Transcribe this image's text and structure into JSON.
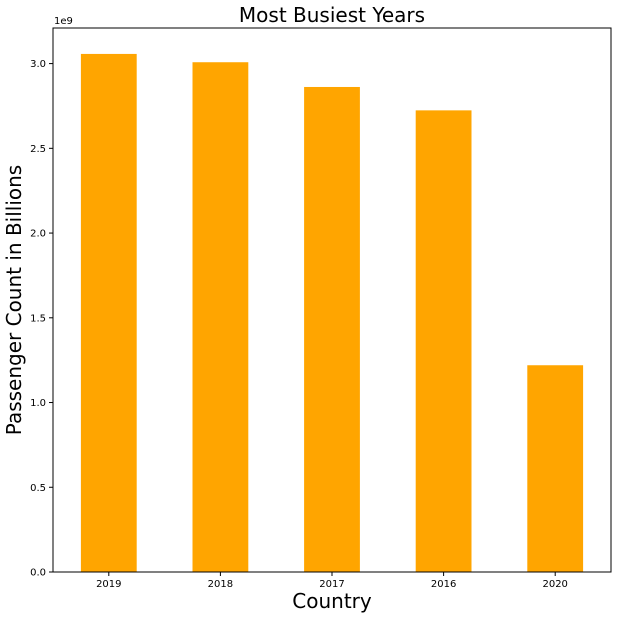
{
  "chart_data": {
    "type": "bar",
    "title": "Most Busiest Years",
    "xlabel": "Country",
    "ylabel": "Passenger Count in Billions",
    "y_offset_label": "1e9",
    "categories": [
      "2019",
      "2018",
      "2017",
      "2016",
      "2020"
    ],
    "values": [
      3057000000,
      3008000000,
      2862000000,
      2724000000,
      1220000000
    ],
    "ylim": [
      0,
      3210000000
    ],
    "yticks": [
      0,
      500000000,
      1000000000,
      1500000000,
      2000000000,
      2500000000,
      3000000000
    ],
    "ytick_labels": [
      "0.0",
      "0.5",
      "1.0",
      "1.5",
      "2.0",
      "2.5",
      "3.0"
    ],
    "bar_color": "#ffa500",
    "grid": false,
    "legend": "none"
  }
}
